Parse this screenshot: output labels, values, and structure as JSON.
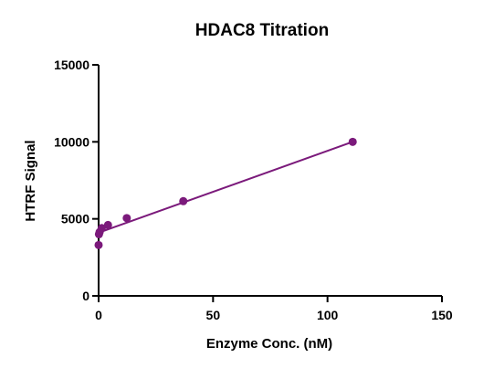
{
  "chart_data": {
    "type": "scatter",
    "title": "HDAC8 Titration",
    "xlabel": "Enzyme Conc. (nM)",
    "ylabel": "HTRF Signal",
    "xlim": [
      0,
      150
    ],
    "ylim": [
      0,
      15000
    ],
    "xticks": [
      0,
      50,
      100,
      150
    ],
    "yticks": [
      0,
      5000,
      10000,
      15000
    ],
    "grid": false,
    "legend": "none",
    "series": [
      {
        "color": "#7b1a7b",
        "points": [
          {
            "x": 0,
            "y": 3300
          },
          {
            "x": 0.15,
            "y": 4000
          },
          {
            "x": 0.46,
            "y": 4150
          },
          {
            "x": 1.37,
            "y": 4400
          },
          {
            "x": 4.1,
            "y": 4600
          },
          {
            "x": 12.3,
            "y": 5050
          },
          {
            "x": 37,
            "y": 6150
          },
          {
            "x": 111,
            "y": 10000
          }
        ],
        "fit": {
          "type": "linear",
          "x": [
            0,
            111
          ],
          "y": [
            4100,
            10000
          ]
        }
      }
    ]
  }
}
